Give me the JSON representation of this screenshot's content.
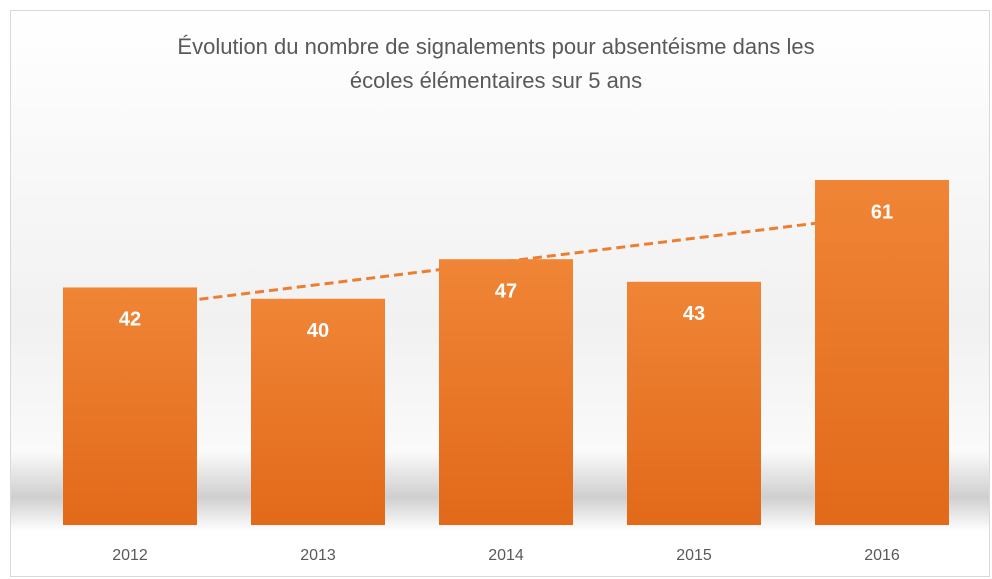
{
  "chart_data": {
    "type": "bar",
    "title": "Évolution du nombre de signalements pour absentéisme dans les écoles élémentaires sur 5 ans",
    "categories": [
      "2012",
      "2013",
      "2014",
      "2015",
      "2016"
    ],
    "values": [
      42,
      40,
      47,
      43,
      61
    ],
    "color": "#ed7d31",
    "trendline": "linear",
    "data_labels": true
  }
}
